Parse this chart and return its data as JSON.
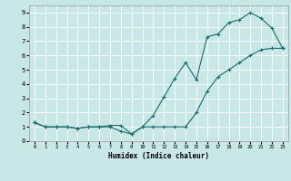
{
  "title": "",
  "xlabel": "Humidex (Indice chaleur)",
  "bg_color": "#c8e8e8",
  "grid_color": "#ffffff",
  "line_color": "#1a6b6b",
  "xlim": [
    -0.5,
    23.5
  ],
  "ylim": [
    0,
    9.5
  ],
  "xticks": [
    0,
    1,
    2,
    3,
    4,
    5,
    6,
    7,
    8,
    9,
    10,
    11,
    12,
    13,
    14,
    15,
    16,
    17,
    18,
    19,
    20,
    21,
    22,
    23
  ],
  "yticks": [
    0,
    1,
    2,
    3,
    4,
    5,
    6,
    7,
    8,
    9
  ],
  "line1_x": [
    0,
    1,
    2,
    3,
    4,
    5,
    6,
    7,
    8,
    9,
    10,
    11,
    12,
    13,
    14,
    15,
    16,
    17,
    18,
    19,
    20,
    21,
    22,
    23
  ],
  "line1_y": [
    1.3,
    1.0,
    1.0,
    1.0,
    0.9,
    1.0,
    1.0,
    1.0,
    0.7,
    0.5,
    1.0,
    1.8,
    3.1,
    4.4,
    5.5,
    4.3,
    7.3,
    7.5,
    8.3,
    8.5,
    9.0,
    8.6,
    7.9,
    6.5
  ],
  "line2_x": [
    0,
    1,
    2,
    3,
    4,
    5,
    6,
    7,
    8,
    9,
    10,
    11,
    12,
    13,
    14,
    15,
    16,
    17,
    18,
    19,
    20,
    21,
    22,
    23
  ],
  "line2_y": [
    1.3,
    1.0,
    1.0,
    1.0,
    0.9,
    1.0,
    1.0,
    1.1,
    1.1,
    0.5,
    1.0,
    1.0,
    1.0,
    1.0,
    1.0,
    2.0,
    3.5,
    4.5,
    5.0,
    5.5,
    6.0,
    6.4,
    6.5,
    6.5
  ]
}
